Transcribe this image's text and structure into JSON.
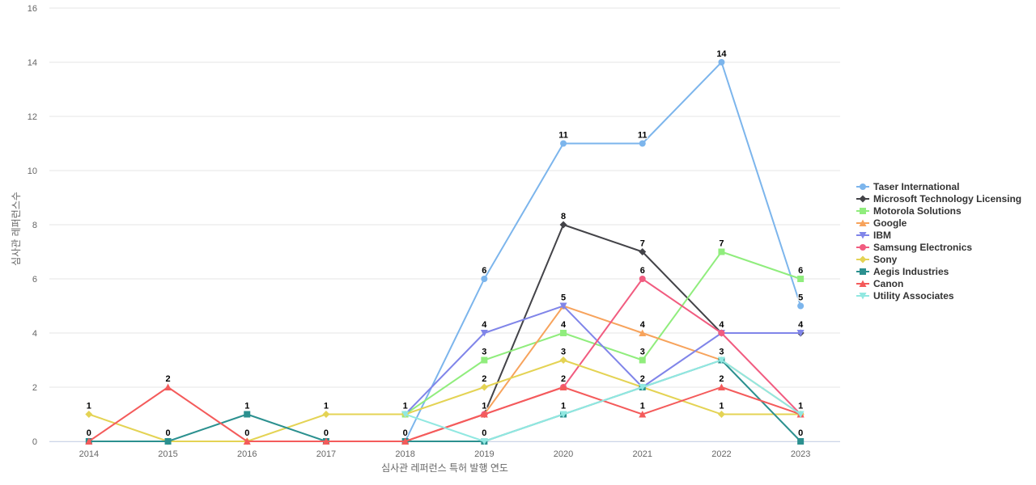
{
  "chart_data": {
    "type": "line",
    "title": "",
    "xlabel": "심사관 레퍼런스 특허 발행 연도",
    "ylabel": "심사관 레퍼런스수",
    "x": [
      "2014",
      "2015",
      "2016",
      "2017",
      "2018",
      "2019",
      "2020",
      "2021",
      "2022",
      "2023"
    ],
    "ylim": [
      0,
      16
    ],
    "yticks": [
      "0",
      "2",
      "4",
      "6",
      "8",
      "10",
      "12",
      "14",
      "16"
    ],
    "grid": true,
    "legend_position": "right",
    "series": [
      {
        "name": "Taser International",
        "color": "#7cb5ec",
        "marker": "circle",
        "values": [
          null,
          null,
          null,
          null,
          0,
          6,
          11,
          11,
          14,
          5
        ],
        "labels": [
          false,
          false,
          false,
          false,
          false,
          true,
          true,
          true,
          true,
          true
        ]
      },
      {
        "name": "Microsoft Technology Licensing",
        "color": "#434348",
        "marker": "diamond",
        "values": [
          null,
          null,
          null,
          null,
          null,
          1,
          8,
          7,
          4,
          4
        ],
        "labels": [
          false,
          false,
          false,
          false,
          false,
          false,
          true,
          true,
          false,
          false
        ]
      },
      {
        "name": "Motorola Solutions",
        "color": "#90ed7d",
        "marker": "square",
        "values": [
          null,
          null,
          null,
          null,
          1,
          3,
          4,
          3,
          7,
          6
        ],
        "labels": [
          false,
          false,
          false,
          false,
          false,
          true,
          true,
          true,
          true,
          true
        ]
      },
      {
        "name": "Google",
        "color": "#f7a35c",
        "marker": "triangle",
        "values": [
          null,
          null,
          null,
          null,
          0,
          1,
          5,
          4,
          3,
          1
        ],
        "labels": [
          false,
          false,
          false,
          false,
          false,
          false,
          false,
          true,
          false,
          false
        ]
      },
      {
        "name": "IBM",
        "color": "#8085e9",
        "marker": "triangle-down",
        "values": [
          null,
          null,
          null,
          null,
          1,
          4,
          5,
          2,
          4,
          4
        ],
        "labels": [
          false,
          false,
          false,
          false,
          false,
          true,
          true,
          false,
          true,
          true
        ]
      },
      {
        "name": "Samsung Electronics",
        "color": "#f15c80",
        "marker": "circle",
        "values": [
          null,
          null,
          null,
          null,
          0,
          1,
          2,
          6,
          4,
          1
        ],
        "labels": [
          false,
          false,
          false,
          false,
          false,
          true,
          true,
          true,
          false,
          true
        ]
      },
      {
        "name": "Sony",
        "color": "#e4d354",
        "marker": "diamond",
        "values": [
          1,
          0,
          0,
          1,
          1,
          2,
          3,
          2,
          1,
          1
        ],
        "labels": [
          true,
          false,
          true,
          true,
          false,
          true,
          true,
          false,
          true,
          false
        ]
      },
      {
        "name": "Aegis Industries",
        "color": "#2b908f",
        "marker": "square",
        "values": [
          0,
          0,
          1,
          0,
          0,
          0,
          1,
          2,
          3,
          0
        ],
        "labels": [
          false,
          true,
          true,
          false,
          true,
          false,
          false,
          true,
          true,
          true
        ]
      },
      {
        "name": "Canon",
        "color": "#f45b5b",
        "marker": "triangle",
        "values": [
          0,
          2,
          0,
          0,
          0,
          1,
          2,
          1,
          2,
          1
        ],
        "labels": [
          true,
          true,
          false,
          true,
          false,
          false,
          false,
          true,
          true,
          false
        ]
      },
      {
        "name": "Utility Associates",
        "color": "#91e8e1",
        "marker": "triangle-down",
        "values": [
          null,
          null,
          null,
          null,
          1,
          0,
          1,
          2,
          3,
          1
        ],
        "labels": [
          false,
          false,
          false,
          false,
          true,
          true,
          true,
          false,
          false,
          false
        ]
      }
    ]
  }
}
